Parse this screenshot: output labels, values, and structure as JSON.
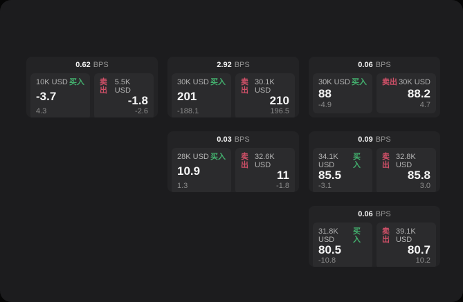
{
  "page": {
    "background": "#060606",
    "surface_color": "#1c1c1e",
    "card_color": "#232325",
    "panel_color": "#2b2b2d"
  },
  "labels": {
    "bps_unit": "BPS",
    "buy": "买入",
    "sell": "卖出"
  },
  "colors": {
    "buy_accent": "#43b06e",
    "sell_accent": "#d05068"
  },
  "cards": [
    {
      "col": 1,
      "row": 1,
      "bps": "0.62",
      "buy": {
        "amount": "10K USD",
        "price": "-3.7",
        "delta": "4.3"
      },
      "sell": {
        "amount": "5.5K USD",
        "price": "-1.8",
        "delta": "-2.6"
      }
    },
    {
      "col": 2,
      "row": 1,
      "bps": "2.92",
      "buy": {
        "amount": "30K USD",
        "price": "201",
        "delta": "-188.1"
      },
      "sell": {
        "amount": "30.1K USD",
        "price": "210",
        "delta": "196.5"
      }
    },
    {
      "col": 3,
      "row": 1,
      "bps": "0.06",
      "buy": {
        "amount": "30K USD",
        "price": "88",
        "delta": "-4.9"
      },
      "sell": {
        "amount": "30K USD",
        "price": "88.2",
        "delta": "4.7"
      }
    },
    {
      "col": 2,
      "row": 2,
      "bps": "0.03",
      "buy": {
        "amount": "28K USD",
        "price": "10.9",
        "delta": "1.3"
      },
      "sell": {
        "amount": "32.6K USD",
        "price": "11",
        "delta": "-1.8"
      }
    },
    {
      "col": 3,
      "row": 2,
      "bps": "0.09",
      "buy": {
        "amount": "34.1K USD",
        "price": "85.5",
        "delta": "-3.1"
      },
      "sell": {
        "amount": "32.8K USD",
        "price": "85.8",
        "delta": "3.0"
      }
    },
    {
      "col": 3,
      "row": 3,
      "bps": "0.06",
      "buy": {
        "amount": "31.8K USD",
        "price": "80.5",
        "delta": "-10.8"
      },
      "sell": {
        "amount": "39.1K USD",
        "price": "80.7",
        "delta": "10.2"
      }
    }
  ]
}
